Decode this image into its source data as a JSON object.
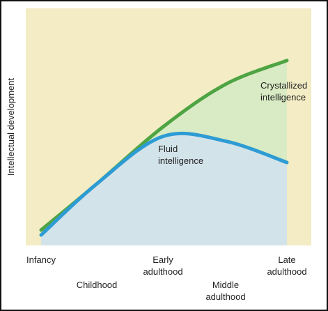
{
  "chart_data": {
    "type": "area",
    "y_label": "Intellectual development",
    "categories": [
      "Infancy",
      "Childhood",
      "Early adulthood",
      "Middle adulthood",
      "Late adulthood"
    ],
    "series": [
      {
        "name": "Crystallized intelligence",
        "color": "#4ea443",
        "fill": "#d9ebc4",
        "values": [
          6.5,
          26,
          50,
          68,
          78
        ]
      },
      {
        "name": "Fluid intelligence",
        "color": "#2e9cd4",
        "fill": "#d3e3ea",
        "values": [
          4.4,
          26,
          46,
          44,
          35
        ]
      }
    ],
    "background": "#f3ecc4",
    "ylim": [
      0,
      100
    ]
  }
}
